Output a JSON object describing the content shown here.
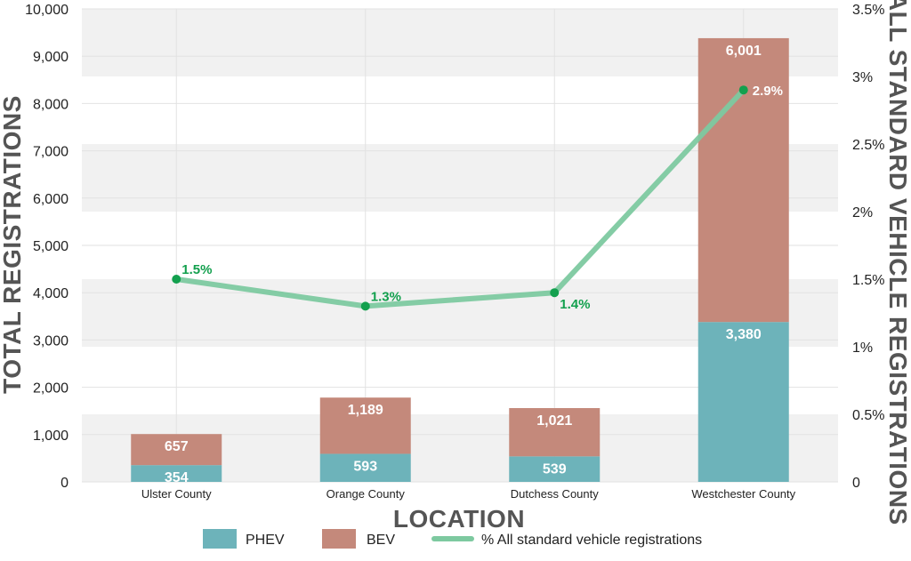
{
  "chart_data": {
    "type": "bar",
    "stacked": true,
    "categories": [
      "Ulster County",
      "Orange County",
      "Dutchess County",
      "Westchester County"
    ],
    "series": [
      {
        "name": "PHEV",
        "values": [
          354,
          593,
          539,
          3380
        ],
        "labels": [
          "354",
          "593",
          "539",
          "3,380"
        ],
        "color": "#6db3ba"
      },
      {
        "name": "BEV",
        "values": [
          657,
          1189,
          1021,
          6001
        ],
        "labels": [
          "657",
          "1,189",
          "1,021",
          "6,001"
        ],
        "color": "#c4897b"
      }
    ],
    "line_series": {
      "name": "% All standard vehicle registrations",
      "values": [
        1.5,
        1.3,
        1.4,
        2.9
      ],
      "labels": [
        "1.5%",
        "1.3%",
        "1.4%",
        "2.9%"
      ],
      "color": "#7dc9a0",
      "point_color": "#13a04e",
      "label_color": "#13a04e"
    },
    "xlabel": "LOCATION",
    "ylabel": "TOTAL REGISTRATIONS",
    "y2label": "% ALL STANDARD VEHICLE REGISTRATIONS",
    "ylim": [
      0,
      10000
    ],
    "y2lim": [
      0,
      3.5
    ],
    "yticks": [
      0,
      1000,
      2000,
      3000,
      4000,
      5000,
      6000,
      7000,
      8000,
      9000,
      10000
    ],
    "ytick_labels": [
      "0",
      "1,000",
      "2,000",
      "3,000",
      "4,000",
      "5,000",
      "6,000",
      "7,000",
      "8,000",
      "9,000",
      "10,000"
    ],
    "y2ticks": [
      0,
      0.5,
      1,
      1.5,
      2,
      2.5,
      3,
      3.5
    ],
    "y2tick_labels": [
      "0",
      "0.5%",
      "1%",
      "1.5%",
      "2%",
      "2.5%",
      "3%",
      "3.5%"
    ],
    "grid": true,
    "legend_position": "bottom"
  }
}
